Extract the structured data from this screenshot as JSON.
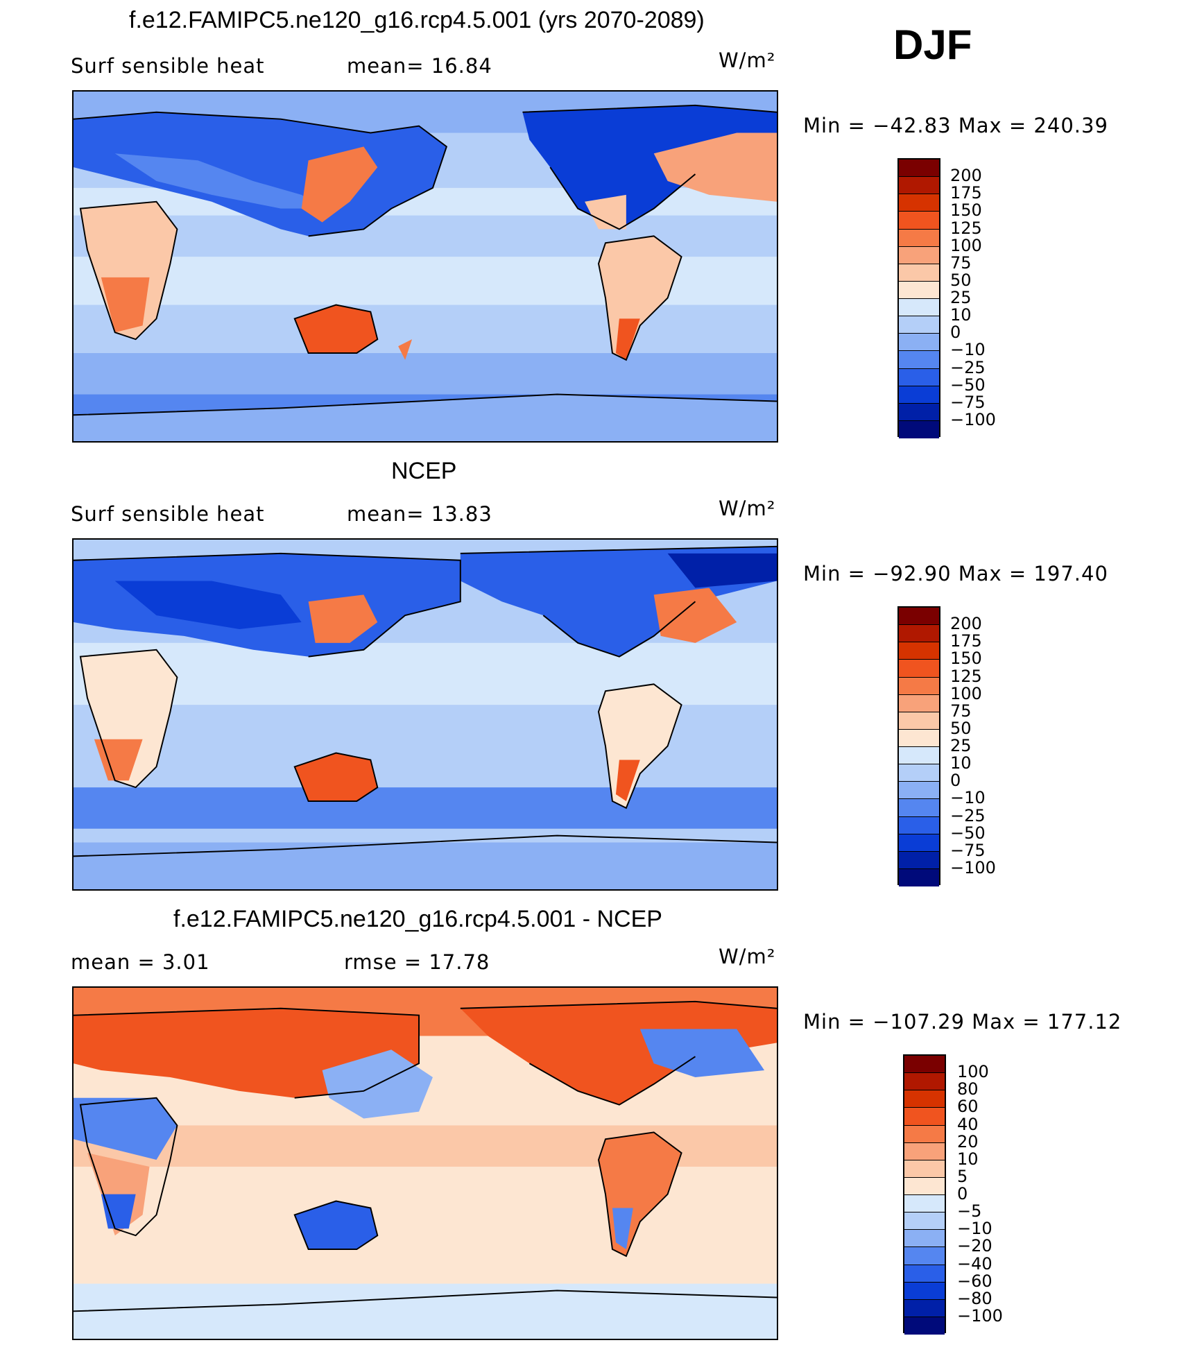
{
  "season": "DJF",
  "colors": {
    "abs": [
      "#7a0000",
      "#b01800",
      "#d63300",
      "#f0541f",
      "#f57a46",
      "#f8a27a",
      "#fbc8a8",
      "#fde6d2",
      "#d6e8fb",
      "#b4cff8",
      "#8bb0f4",
      "#5586f0",
      "#2a5fe8",
      "#0a3dd6",
      "#0020a8",
      "#000a7a"
    ],
    "diff": [
      "#7a0000",
      "#b01800",
      "#d63300",
      "#f0541f",
      "#f57a46",
      "#f8a27a",
      "#fbc8a8",
      "#fde6d2",
      "#d6e8fb",
      "#b4cff8",
      "#8bb0f4",
      "#5586f0",
      "#2a5fe8",
      "#0a3dd6",
      "#0020a8",
      "#000a7a"
    ],
    "ocean_base": "#b4cff8"
  },
  "panels": [
    {
      "title": "f.e12.FAMIPC5.ne120_g16.rcp4.5.001 (yrs 2070-2089)",
      "left_label": "Surf  sensible  heat",
      "mid_label": "mean=   16.84",
      "units": "W/m²",
      "minmax": "Min  =  −42.83  Max  =  240.39",
      "colorbar_labels": [
        "200",
        "175",
        "150",
        "125",
        "100",
        "75",
        "50",
        "25",
        "10",
        "0",
        "−10",
        "−25",
        "−50",
        "−75",
        "−100"
      ]
    },
    {
      "title": "NCEP",
      "left_label": "Surf  sensible  heat",
      "mid_label": "mean=   13.83",
      "units": "W/m²",
      "minmax": "Min  =  −92.90  Max  =  197.40",
      "colorbar_labels": [
        "200",
        "175",
        "150",
        "125",
        "100",
        "75",
        "50",
        "25",
        "10",
        "0",
        "−10",
        "−25",
        "−50",
        "−75",
        "−100"
      ]
    },
    {
      "title": "f.e12.FAMIPC5.ne120_g16.rcp4.5.001 - NCEP",
      "left_label": "mean  =     3.01",
      "mid_label": "rmse  =    17.78",
      "units": "W/m²",
      "minmax": "Min  =  −107.29  Max  =  177.12",
      "colorbar_labels": [
        "100",
        "80",
        "60",
        "40",
        "20",
        "10",
        "5",
        "0",
        "−5",
        "−10",
        "−20",
        "−40",
        "−60",
        "−80",
        "−100"
      ]
    }
  ]
}
